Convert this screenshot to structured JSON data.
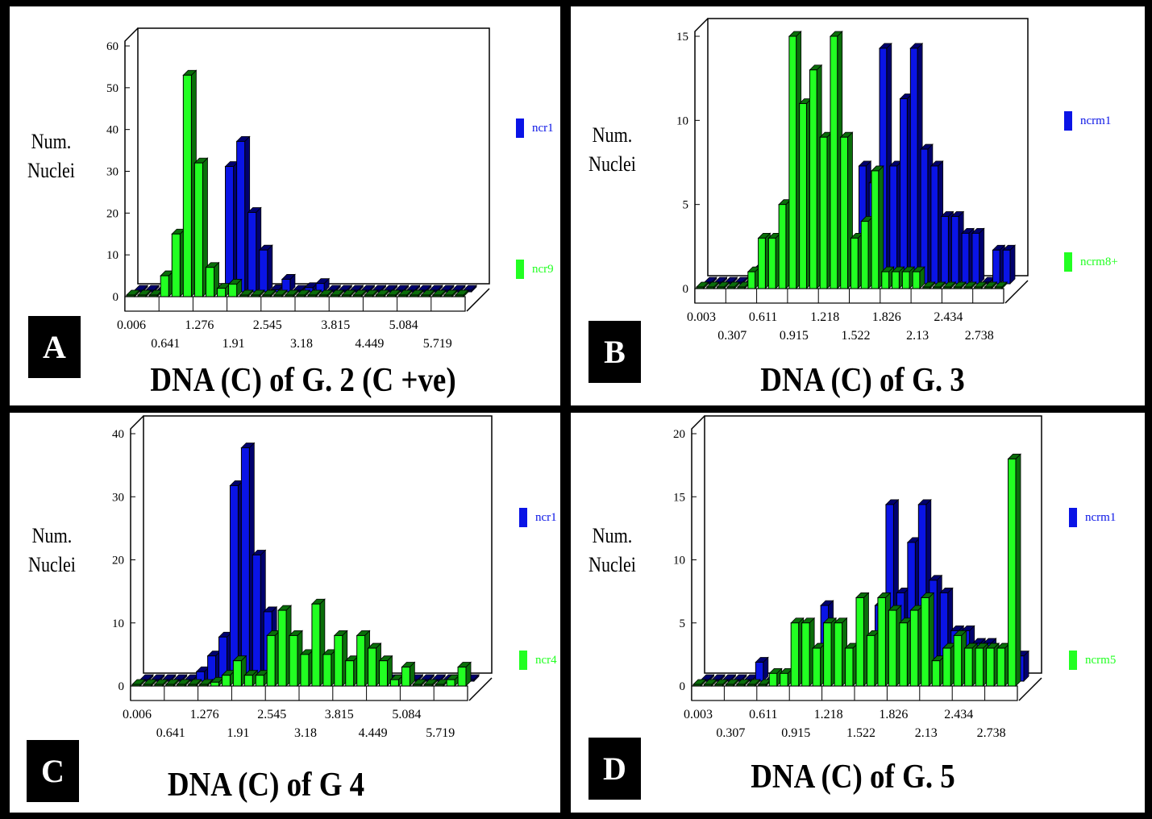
{
  "colors": {
    "series1": "#0a14e6",
    "series1_dark": "#00006e",
    "series2": "#22ff22",
    "series2_dark": "#0a6e0a",
    "background": "#000000",
    "panel": "#ffffff"
  },
  "panels": [
    {
      "letter": "A",
      "title": "DNA (C) of G. 2 (C +ve)",
      "ylabel": [
        "Num.",
        "Nuclei"
      ],
      "legend": [
        "ncr1",
        "ncr9"
      ],
      "chart_data": {
        "type": "bar",
        "ylim": [
          0,
          60
        ],
        "yticks": [
          0,
          10,
          20,
          30,
          40,
          50,
          60
        ],
        "xtick_labels": [
          "0.006",
          "0.641",
          "1.276",
          "1.91",
          "2.545",
          "3.18",
          "3.815",
          "4.449",
          "5.084",
          "5.719"
        ],
        "series": [
          {
            "name": "ncr1",
            "values": [
              0,
              0,
              0,
              0,
              0,
              0,
              0,
              0,
              30,
              36,
              19,
              10,
              0.5,
              3,
              0,
              1,
              2,
              0,
              0,
              0,
              0,
              0,
              0,
              0,
              0,
              0,
              0,
              0,
              0,
              0
            ]
          },
          {
            "name": "ncr9",
            "values": [
              0,
              0,
              0,
              5,
              15,
              53,
              32,
              7,
              2,
              3,
              0,
              0,
              0,
              0,
              0,
              0,
              0,
              0,
              0,
              0,
              0,
              0,
              0,
              0,
              0,
              0,
              0,
              0,
              0,
              0
            ]
          }
        ]
      }
    },
    {
      "letter": "B",
      "title": "DNA (C) of G. 3",
      "ylabel": [
        "Num.",
        "Nuclei"
      ],
      "legend": [
        "ncrm1",
        "ncrm8+"
      ],
      "chart_data": {
        "type": "bar",
        "ylim": [
          0,
          15
        ],
        "yticks": [
          0,
          5,
          10,
          15
        ],
        "xtick_labels": [
          "0.003",
          "0.307",
          "0.611",
          "0.915",
          "1.218",
          "1.522",
          "1.826",
          "2.13",
          "2.434",
          "2.738"
        ],
        "series": [
          {
            "name": "ncrm1",
            "values": [
              0,
              0,
              0,
              0,
              0,
              1,
              0,
              0,
              0,
              0,
              0,
              0,
              0,
              0,
              0,
              7,
              6,
              14,
              7,
              11,
              14,
              8,
              7,
              4,
              4,
              3,
              3,
              0,
              2,
              2
            ]
          },
          {
            "name": "ncrm8+",
            "values": [
              0,
              0,
              0,
              0,
              0,
              1,
              3,
              3,
              5,
              15,
              11,
              13,
              9,
              15,
              9,
              3,
              4,
              7,
              1,
              1,
              1,
              1,
              0,
              0,
              0,
              0,
              0,
              0,
              0,
              0
            ]
          }
        ]
      }
    },
    {
      "letter": "C",
      "title": "DNA (C) of G 4",
      "ylabel": [
        "Num.",
        "Nuclei"
      ],
      "legend": [
        "ncr1",
        "ncr4"
      ],
      "chart_data": {
        "type": "bar",
        "ylim": [
          0,
          40
        ],
        "yticks": [
          0,
          10,
          20,
          30,
          40
        ],
        "xtick_labels": [
          "0.006",
          "0.641",
          "1.276",
          "1.91",
          "2.545",
          "3.18",
          "3.815",
          "4.449",
          "5.084",
          "5.719"
        ],
        "series": [
          {
            "name": "ncr1",
            "values": [
              0,
              0,
              0,
              0,
              0,
              1.5,
              4,
              7,
              31,
              37,
              20,
              11,
              0,
              0,
              0,
              0,
              0,
              0,
              0,
              0,
              0,
              0,
              0,
              0,
              0,
              0,
              0,
              0,
              0,
              0
            ]
          },
          {
            "name": "ncr4",
            "values": [
              0,
              0,
              0,
              0,
              0,
              0,
              0,
              0.6,
              1.7,
              4,
              1.7,
              1.7,
              8,
              12,
              8,
              5,
              13,
              5,
              8,
              4,
              8,
              6,
              4,
              1,
              3,
              0,
              0,
              0,
              1,
              3
            ]
          }
        ]
      }
    },
    {
      "letter": "D",
      "title": "DNA (C) of G. 5",
      "ylabel": [
        "Num.",
        "Nuclei"
      ],
      "legend": [
        "ncrm1",
        "ncrm5"
      ],
      "chart_data": {
        "type": "bar",
        "ylim": [
          0,
          20
        ],
        "yticks": [
          0,
          5,
          10,
          15,
          20
        ],
        "xtick_labels": [
          "0.003",
          "0.307",
          "0.611",
          "0.915",
          "1.218",
          "1.522",
          "1.826",
          "2.13",
          "2.434",
          "2.738"
        ],
        "series": [
          {
            "name": "ncrm1",
            "values": [
              0,
              0,
              0,
              0,
              0,
              1.5,
              0,
              0,
              0,
              0,
              0,
              6,
              0,
              0,
              0,
              0,
              6,
              14,
              7,
              11,
              14,
              8,
              7,
              4,
              4,
              3,
              3,
              0,
              0,
              2
            ]
          },
          {
            "name": "ncrm5",
            "values": [
              0,
              0,
              0,
              0,
              0,
              0,
              0,
              1,
              1,
              5,
              5,
              3,
              5,
              5,
              3,
              7,
              4,
              7,
              6,
              5,
              6,
              7,
              2,
              3,
              4,
              3,
              3,
              3,
              3,
              18
            ]
          }
        ]
      }
    }
  ]
}
